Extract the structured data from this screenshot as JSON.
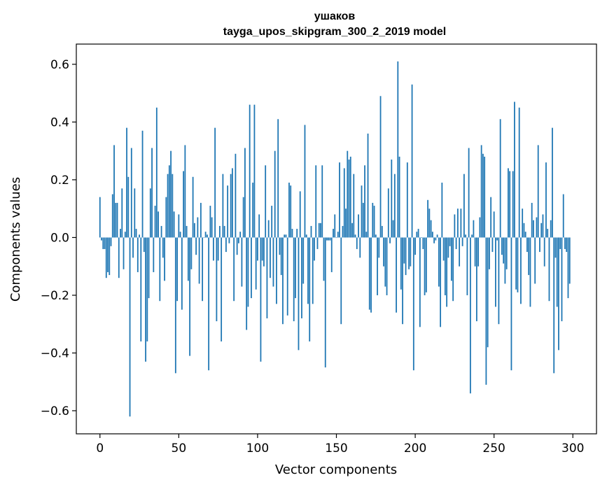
{
  "chart_data": {
    "type": "bar",
    "title": "ушаков",
    "subtitle": "tayga_upos_skipgram_300_2_2019 model",
    "xlabel": "Vector components",
    "ylabel": "Components values",
    "xlim": [
      -15,
      315
    ],
    "ylim": [
      -0.68,
      0.67
    ],
    "xticks": [
      0,
      50,
      100,
      150,
      200,
      250,
      300
    ],
    "yticks": [
      -0.6,
      -0.4,
      -0.2,
      0.0,
      0.2,
      0.4,
      0.6
    ],
    "xtick_labels": [
      "0",
      "50",
      "100",
      "150",
      "200",
      "250",
      "300"
    ],
    "ytick_labels": [
      "−0.6",
      "−0.4",
      "−0.2",
      "0.0",
      "0.2",
      "0.4",
      "0.6"
    ],
    "bar_color": "#1f77b4",
    "grid": false,
    "values": [
      0.14,
      -0.01,
      -0.04,
      -0.04,
      -0.14,
      -0.12,
      -0.13,
      -0.03,
      0.15,
      0.32,
      0.12,
      0.12,
      -0.14,
      0.03,
      0.17,
      -0.11,
      0.02,
      0.38,
      0.21,
      -0.62,
      0.31,
      -0.07,
      0.17,
      0.03,
      -0.12,
      0.01,
      -0.36,
      0.37,
      -0.05,
      -0.43,
      -0.36,
      -0.21,
      0.17,
      0.31,
      -0.12,
      0.11,
      0.45,
      0.09,
      -0.22,
      0.04,
      -0.07,
      -0.15,
      0.14,
      0.22,
      0.25,
      0.3,
      0.22,
      0.09,
      -0.47,
      -0.22,
      0.08,
      0.02,
      -0.25,
      0.23,
      0.32,
      0.04,
      -0.15,
      -0.41,
      -0.11,
      0.21,
      0.05,
      -0.06,
      0.07,
      -0.16,
      0.12,
      -0.22,
      0.0,
      0.02,
      0.01,
      -0.46,
      0.11,
      0.07,
      -0.08,
      0.38,
      -0.29,
      -0.08,
      0.04,
      -0.36,
      0.22,
      0.04,
      -0.05,
      0.18,
      -0.02,
      0.22,
      0.24,
      -0.22,
      0.29,
      -0.06,
      -0.02,
      0.02,
      -0.17,
      0.14,
      0.31,
      -0.32,
      -0.24,
      0.46,
      -0.21,
      0.19,
      0.46,
      -0.18,
      -0.08,
      0.08,
      -0.43,
      -0.08,
      -0.1,
      0.25,
      -0.28,
      0.06,
      -0.14,
      0.11,
      -0.17,
      0.3,
      -0.23,
      0.41,
      -0.06,
      -0.13,
      -0.3,
      0.01,
      0.01,
      -0.27,
      0.19,
      0.18,
      0.03,
      -0.29,
      -0.21,
      0.03,
      -0.39,
      0.16,
      -0.28,
      -0.16,
      0.39,
      0.01,
      -0.23,
      -0.36,
      0.04,
      -0.23,
      -0.08,
      0.25,
      -0.04,
      0.05,
      0.05,
      0.25,
      -0.15,
      -0.45,
      -0.01,
      -0.01,
      -0.01,
      -0.12,
      0.03,
      0.08,
      0.0,
      0.02,
      0.26,
      -0.3,
      0.04,
      0.24,
      0.1,
      0.3,
      0.27,
      0.28,
      0.05,
      0.22,
      0.01,
      -0.04,
      0.08,
      -0.07,
      0.18,
      0.12,
      0.25,
      0.02,
      0.36,
      -0.25,
      -0.26,
      0.12,
      0.11,
      0.01,
      -0.2,
      -0.07,
      0.49,
      0.04,
      -0.1,
      -0.17,
      -0.2,
      0.17,
      -0.02,
      0.27,
      0.06,
      0.22,
      -0.26,
      0.61,
      0.28,
      -0.18,
      -0.3,
      -0.09,
      -0.13,
      0.26,
      -0.11,
      -0.1,
      0.53,
      -0.46,
      -0.06,
      0.02,
      0.03,
      -0.31,
      0.0,
      -0.04,
      -0.2,
      -0.19,
      0.13,
      0.1,
      0.06,
      0.02,
      -0.02,
      -0.01,
      0.01,
      -0.17,
      -0.31,
      0.19,
      -0.08,
      -0.2,
      -0.24,
      -0.07,
      -0.03,
      -0.15,
      -0.22,
      0.08,
      -0.04,
      0.1,
      -0.1,
      0.1,
      -0.03,
      0.22,
      0.01,
      -0.2,
      0.31,
      -0.54,
      0.01,
      0.06,
      -0.1,
      -0.29,
      -0.1,
      0.07,
      0.32,
      0.29,
      0.28,
      -0.51,
      -0.38,
      -0.11,
      0.14,
      -0.05,
      0.09,
      -0.24,
      -0.01,
      -0.3,
      0.41,
      -0.06,
      -0.09,
      -0.16,
      -0.11,
      0.24,
      0.23,
      -0.46,
      0.23,
      0.47,
      -0.18,
      -0.19,
      0.45,
      -0.23,
      0.1,
      0.05,
      0.02,
      -0.05,
      -0.13,
      -0.24,
      0.12,
      0.06,
      -0.16,
      0.07,
      0.32,
      -0.05,
      0.05,
      0.08,
      -0.1,
      0.26,
      0.03,
      -0.22,
      0.06,
      0.38,
      -0.47,
      -0.07,
      -0.24,
      -0.39,
      -0.04,
      -0.29,
      0.15,
      -0.04,
      -0.05,
      -0.21,
      -0.16
    ]
  }
}
